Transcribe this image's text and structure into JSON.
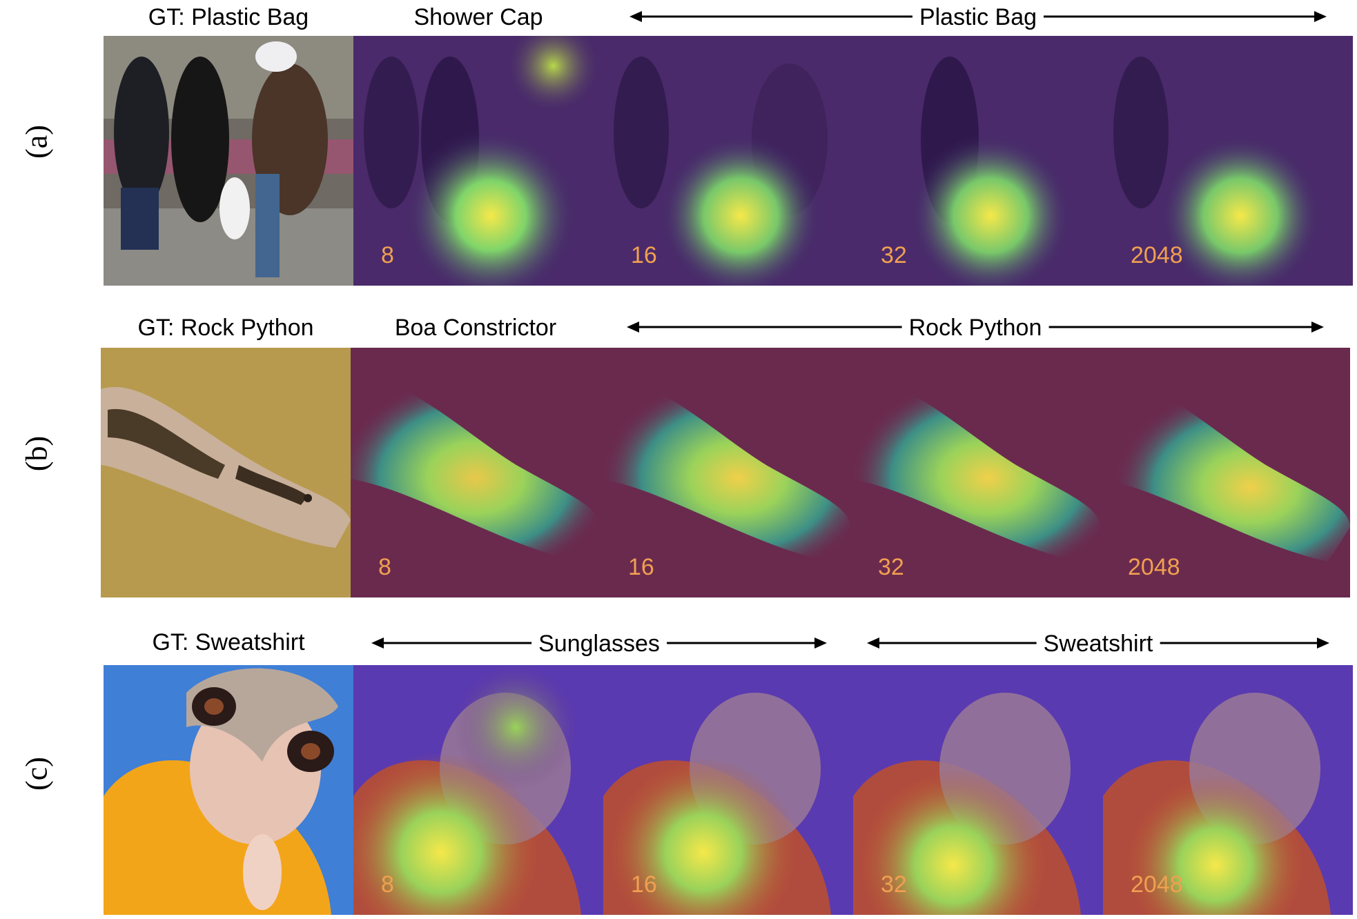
{
  "rows": [
    {
      "label": "(a)",
      "gt_caption": "GT: Plastic Bag",
      "first_pred": "Shower Cap",
      "span_label": "Plastic Bag",
      "numbers": [
        "8",
        "16",
        "32",
        "2048"
      ]
    },
    {
      "label": "(b)",
      "gt_caption": "GT: Rock Python",
      "first_pred": "Boa Constrictor",
      "span_label": "Rock Python",
      "numbers": [
        "8",
        "16",
        "32",
        "2048"
      ]
    },
    {
      "label": "(c)",
      "gt_caption": "GT: Sweatshirt",
      "span_label_left": "Sunglasses",
      "span_label_right": "Sweatshirt",
      "numbers": [
        "8",
        "16",
        "32",
        "2048"
      ]
    }
  ],
  "colors": {
    "number": "#f0a050",
    "heatmap_low": "#3b1d6e",
    "heatmap_high": "#f5e84a"
  }
}
